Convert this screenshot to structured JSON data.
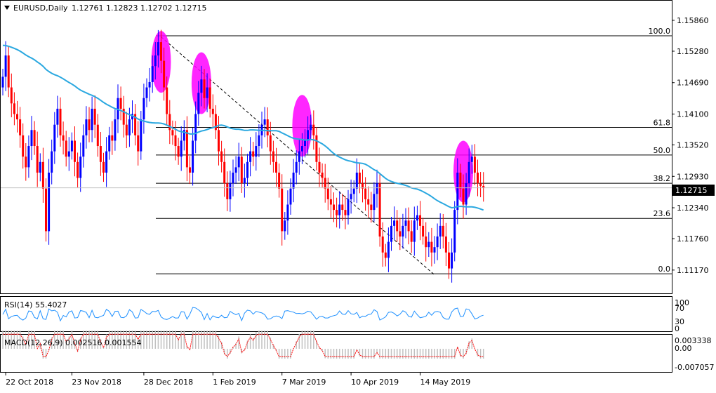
{
  "main": {
    "symbol": "EURUSD,Daily",
    "ohlc": "1.12761 1.12823 1.12702 1.12715",
    "current_price": "1.12715"
  },
  "rsi": {
    "label": "RSI(14) 55.4027",
    "levels": [
      "100",
      "70",
      "30",
      "0"
    ]
  },
  "macd": {
    "label": "MACD(12,26,9) 0.002516 0.001554",
    "levels": [
      "0.003338",
      "0.00",
      "-0.007057"
    ]
  },
  "colors": {
    "bull": "#0000ff",
    "bear": "#ff0000",
    "ma": "#2aa8e0",
    "highlight": "#ff00ff",
    "rsi_line": "#1e90ff",
    "macd_signal": "#ff0000",
    "macd_hist": "#c0c0c0"
  },
  "chart_data": {
    "type": "candlestick",
    "y_ticks": [
      "1.15860",
      "1.15280",
      "1.14690",
      "1.14100",
      "1.13520",
      "1.12930",
      "1.12340",
      "1.11760",
      "1.11170"
    ],
    "ylim": [
      1.1097,
      1.1611
    ],
    "x_tick_labels": [
      {
        "label": "22 Oct 2018",
        "index": 1
      },
      {
        "label": "23 Nov 2018",
        "index": 24
      },
      {
        "label": "28 Dec 2018",
        "index": 49
      },
      {
        "label": "1 Feb 2019",
        "index": 73
      },
      {
        "label": "7 Mar 2019",
        "index": 97
      },
      {
        "label": "10 Apr 2019",
        "index": 121
      },
      {
        "label": "14 May 2019",
        "index": 145
      }
    ],
    "fib_levels": [
      {
        "label": "100.0",
        "value": 1.1557
      },
      {
        "label": "61.8",
        "value": 1.1385
      },
      {
        "label": "50.0",
        "value": 1.1333
      },
      {
        "label": "38.2",
        "value": 1.128
      },
      {
        "label": "23.6",
        "value": 1.1214
      },
      {
        "label": "0.0",
        "value": 1.111
      }
    ],
    "trendline": [
      {
        "index": 55,
        "value": 1.1555
      },
      {
        "index": 150,
        "value": 1.1108
      }
    ],
    "highlight_circles": [
      {
        "index": 55,
        "value": 1.1508
      },
      {
        "index": 69,
        "value": 1.1468
      },
      {
        "index": 104,
        "value": 1.1388
      },
      {
        "index": 160,
        "value": 1.1302
      }
    ],
    "closes": [
      1.148,
      1.152,
      1.146,
      1.143,
      1.141,
      1.14,
      1.137,
      1.133,
      1.131,
      1.135,
      1.138,
      1.135,
      1.13,
      1.132,
      1.127,
      1.119,
      1.13,
      1.134,
      1.139,
      1.142,
      1.137,
      1.136,
      1.133,
      1.134,
      1.136,
      1.132,
      1.129,
      1.133,
      1.137,
      1.14,
      1.138,
      1.142,
      1.139,
      1.135,
      1.132,
      1.13,
      1.134,
      1.137,
      1.136,
      1.14,
      1.144,
      1.142,
      1.139,
      1.137,
      1.14,
      1.141,
      1.137,
      1.134,
      1.14,
      1.144,
      1.146,
      1.147,
      1.15,
      1.152,
      1.1545,
      1.151,
      1.146,
      1.141,
      1.138,
      1.137,
      1.135,
      1.133,
      1.136,
      1.138,
      1.131,
      1.13,
      1.136,
      1.141,
      1.145,
      1.1475,
      1.144,
      1.146,
      1.142,
      1.141,
      1.138,
      1.134,
      1.132,
      1.128,
      1.125,
      1.128,
      1.13,
      1.131,
      1.133,
      1.128,
      1.129,
      1.132,
      1.134,
      1.133,
      1.135,
      1.137,
      1.139,
      1.14,
      1.137,
      1.134,
      1.132,
      1.13,
      1.127,
      1.119,
      1.121,
      1.124,
      1.127,
      1.13,
      1.132,
      1.134,
      1.135,
      1.136,
      1.138,
      1.139,
      1.137,
      1.132,
      1.13,
      1.129,
      1.127,
      1.125,
      1.124,
      1.123,
      1.122,
      1.124,
      1.123,
      1.122,
      1.125,
      1.126,
      1.127,
      1.13,
      1.128,
      1.127,
      1.125,
      1.124,
      1.123,
      1.126,
      1.128,
      1.118,
      1.115,
      1.114,
      1.117,
      1.12,
      1.121,
      1.119,
      1.118,
      1.12,
      1.121,
      1.119,
      1.117,
      1.121,
      1.122,
      1.12,
      1.118,
      1.116,
      1.117,
      1.115,
      1.116,
      1.118,
      1.12,
      1.118,
      1.115,
      1.112,
      1.115,
      1.123,
      1.13,
      1.127,
      1.124,
      1.128,
      1.132,
      1.133,
      1.13,
      1.128,
      1.1275,
      1.12715
    ]
  }
}
